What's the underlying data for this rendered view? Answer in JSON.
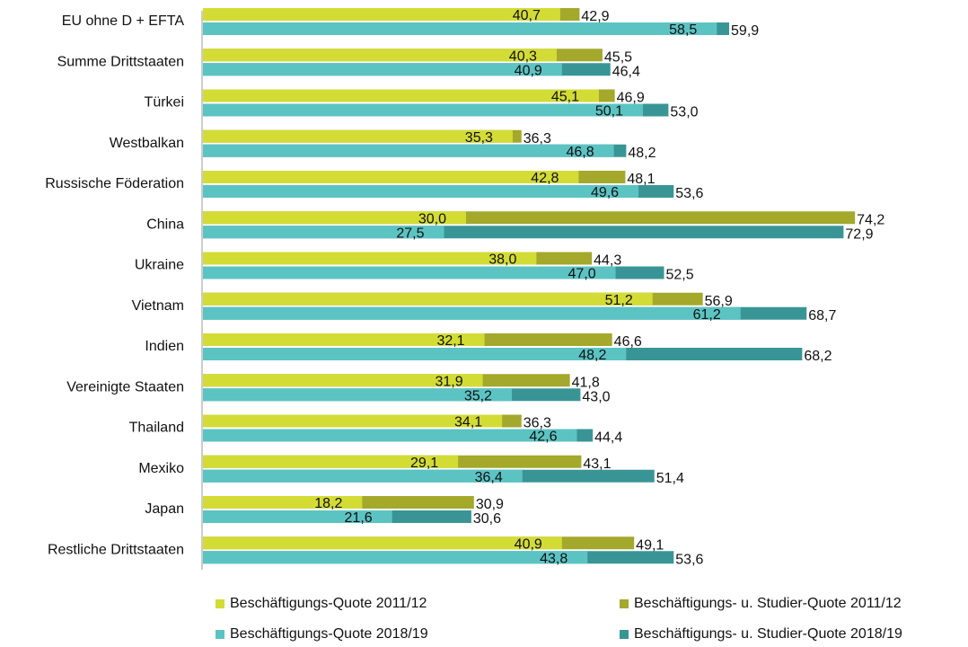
{
  "chart_data": {
    "type": "bar",
    "orientation": "horizontal",
    "categories": [
      "EU ohne D + EFTA",
      "Summe Drittstaaten",
      "Türkei",
      "Westbalkan",
      "Russische Föderation",
      "China",
      "Ukraine",
      "Vietnam",
      "Indien",
      "Vereinigte Staaten",
      "Thailand",
      "Mexiko",
      "Japan",
      "Restliche Drittstaaten"
    ],
    "series": [
      {
        "name": "Beschäftigungs-Quote 2011/12",
        "color": "#d3dc35",
        "values": [
          40.7,
          40.3,
          45.1,
          35.3,
          42.8,
          30.0,
          38.0,
          51.2,
          32.1,
          31.9,
          34.1,
          29.1,
          18.2,
          40.9
        ],
        "value_labels": [
          "40,7",
          "40,3",
          "45,1",
          "35,3",
          "42,8",
          "30,0",
          "38,0",
          "51,2",
          "32,1",
          "31,9",
          "34,1",
          "29,1",
          "18,2",
          "40,9"
        ]
      },
      {
        "name": "Beschäftigungs- u. Studier-Quote 2011/12",
        "color": "#a4a82b",
        "values": [
          42.9,
          45.5,
          46.9,
          36.3,
          48.1,
          74.2,
          44.3,
          56.9,
          46.6,
          41.8,
          36.3,
          43.1,
          30.9,
          49.1
        ],
        "value_labels": [
          "42,9",
          "45,5",
          "46,9",
          "36,3",
          "48,1",
          "74,2",
          "44,3",
          "56,9",
          "46,6",
          "41,8",
          "36,3",
          "43,1",
          "30,9",
          "49,1"
        ]
      },
      {
        "name": "Beschäftigungs-Quote 2018/19",
        "color": "#5cc3c3",
        "values": [
          58.5,
          40.9,
          50.1,
          46.8,
          49.6,
          27.5,
          47.0,
          61.2,
          48.2,
          35.2,
          42.6,
          36.4,
          21.6,
          43.8
        ],
        "value_labels": [
          "58,5",
          "40,9",
          "50,1",
          "46,8",
          "49,6",
          "27,5",
          "47,0",
          "61,2",
          "48,2",
          "35,2",
          "42,6",
          "36,4",
          "21,6",
          "43,8"
        ]
      },
      {
        "name": "Beschäftigungs- u. Studier-Quote 2018/19",
        "color": "#399595",
        "values": [
          59.9,
          46.4,
          53.0,
          48.2,
          53.6,
          72.9,
          52.5,
          68.7,
          68.2,
          43.0,
          44.4,
          51.4,
          30.6,
          53.6
        ],
        "value_labels": [
          "59,9",
          "46,4",
          "53,0",
          "48,2",
          "53,6",
          "72,9",
          "52,5",
          "68,7",
          "68,2",
          "43,0",
          "44,4",
          "51,4",
          "30,6",
          "53,6"
        ]
      }
    ]
  }
}
